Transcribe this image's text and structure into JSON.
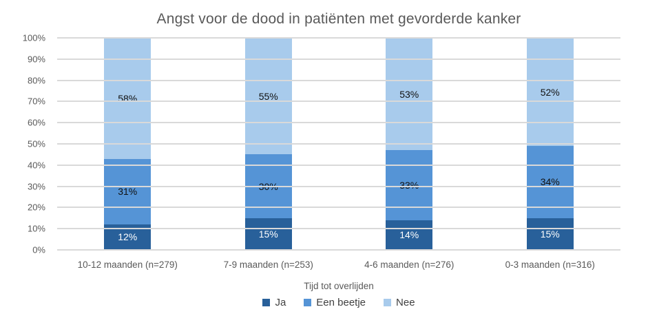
{
  "chart_data": {
    "type": "bar",
    "variant": "stacked-100-percent-column",
    "title": "Angst voor de dood in patiënten met gevorderde kanker",
    "categories": [
      "10-12 maanden (n=279)",
      "7-9 maanden (n=253)",
      "4-6 maanden (n=276)",
      "0-3 maanden (n=316)"
    ],
    "series": [
      {
        "name": "Ja",
        "color": "#28609A",
        "label_color": "#FFFFFF",
        "values": [
          12,
          15,
          14,
          15
        ]
      },
      {
        "name": "Een beetje",
        "color": "#5594D6",
        "label_color": "#111111",
        "values": [
          31,
          30,
          33,
          34
        ]
      },
      {
        "name": "Nee",
        "color": "#A8CBEC",
        "label_color": "#111111",
        "values": [
          58,
          55,
          53,
          52
        ]
      }
    ],
    "value_suffix": "%",
    "xlabel": "Tijd tot overlijden",
    "ylabel": "",
    "ylim": [
      0,
      100
    ],
    "yticks": [
      "100%",
      "90%",
      "80%",
      "70%",
      "60%",
      "50%",
      "40%",
      "30%",
      "20%",
      "10%",
      "0%"
    ],
    "grid": true,
    "gridline_color": "#D9D9D9",
    "legend": [
      "Ja",
      "Een beetje",
      "Nee"
    ],
    "legend_position": "bottom",
    "title_color": "#595959",
    "axis_text_color": "#595959",
    "legend_text_color": "#404040",
    "background_color": "#FFFFFF"
  }
}
